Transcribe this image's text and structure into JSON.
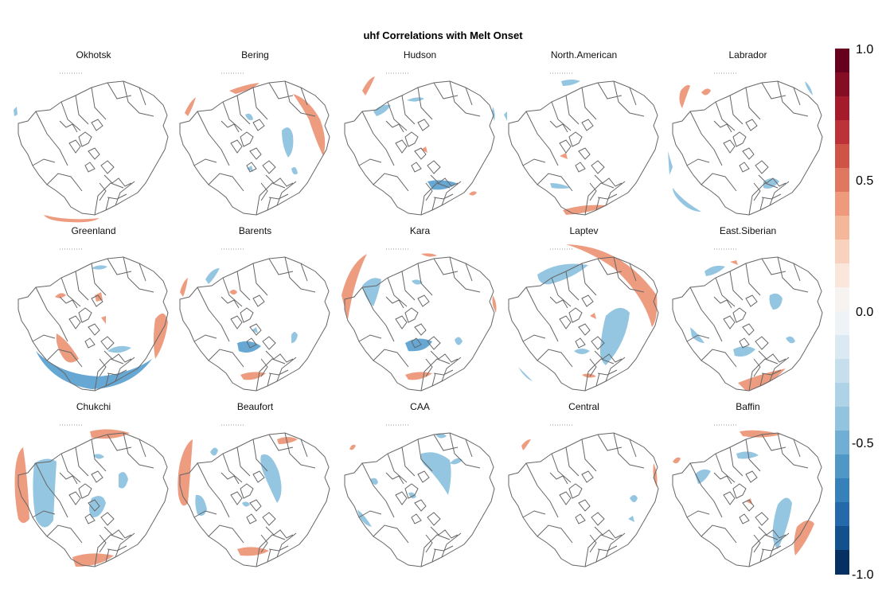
{
  "title": "uhf Correlations with Melt Onset",
  "panels": [
    {
      "name": "Okhotsk"
    },
    {
      "name": "Bering"
    },
    {
      "name": "Hudson"
    },
    {
      "name": "North.American"
    },
    {
      "name": "Labrador"
    },
    {
      "name": "Greenland"
    },
    {
      "name": "Barents"
    },
    {
      "name": "Kara"
    },
    {
      "name": "Laptev"
    },
    {
      "name": "East.Siberian"
    },
    {
      "name": "Chukchi"
    },
    {
      "name": "Beaufort"
    },
    {
      "name": "CAA"
    },
    {
      "name": "Central"
    },
    {
      "name": "Baffin"
    }
  ],
  "colorbar": {
    "ticks": [
      "1.0",
      "0.5",
      "0.0",
      "-0.5",
      "-1.0"
    ],
    "range": [
      -1.0,
      1.0
    ],
    "colors": [
      "#67001f",
      "#850e24",
      "#a51b2b",
      "#bc3238",
      "#d05446",
      "#e07760",
      "#ef9a7c",
      "#f5b79a",
      "#f9d2be",
      "#fbe6dc",
      "#f7f3f1",
      "#eef3f7",
      "#dbe9f2",
      "#c7dfed",
      "#aed3e7",
      "#93c4df",
      "#70aed4",
      "#4f98c6",
      "#3781ba",
      "#2469aa",
      "#12518e",
      "#053061"
    ]
  },
  "colors": {
    "positive": "#ec9475",
    "negative": "#8cc1de",
    "strong_negative": "#5a9fcf",
    "land": "#666666"
  }
}
